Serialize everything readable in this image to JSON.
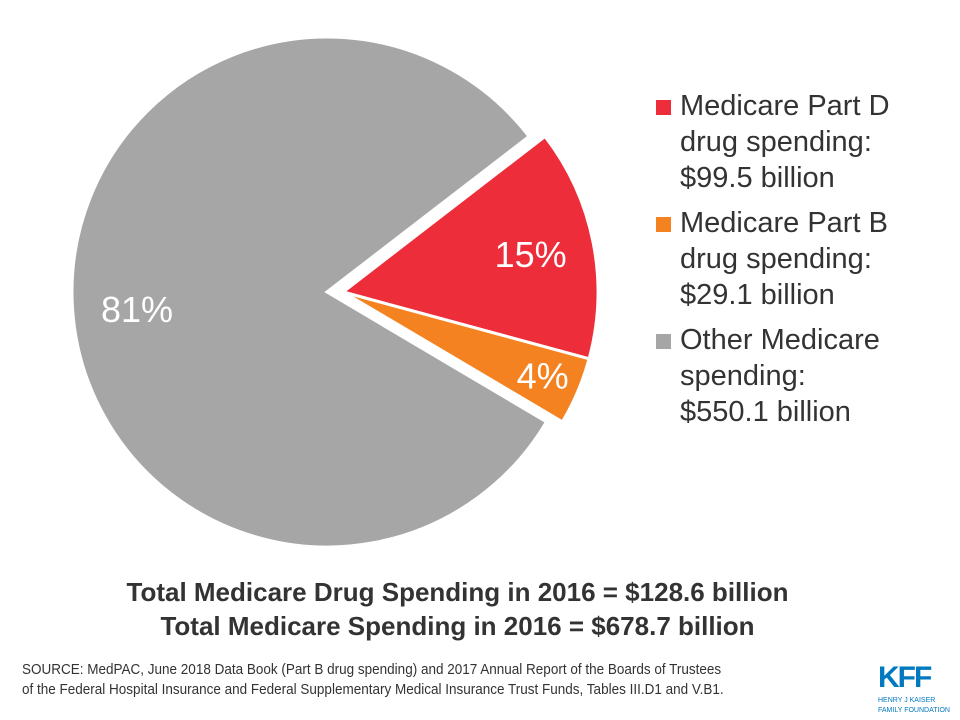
{
  "chart_data": {
    "type": "pie",
    "slices": [
      {
        "label": "Medicare Part D drug spending: $99.5 billion",
        "value": 99.5,
        "pct_label": "15%",
        "color": "#EE2D3A",
        "exploded": true
      },
      {
        "label": "Medicare Part B drug spending: $29.1 billion",
        "value": 29.1,
        "pct_label": "4%",
        "color": "#F58220",
        "exploded": true
      },
      {
        "label": "Other Medicare spending: $550.1 billion",
        "value": 550.1,
        "pct_label": "81%",
        "color": "#A6A6A6",
        "exploded": false
      }
    ],
    "legend_placement": "right"
  },
  "legend": [
    {
      "lines": [
        "Medicare Part D",
        "drug spending:",
        "$99.5 billion"
      ]
    },
    {
      "lines": [
        "Medicare Part B",
        "drug spending:",
        "$29.1 billion"
      ]
    },
    {
      "lines": [
        "Other Medicare",
        "spending:",
        "$550.1 billion"
      ]
    }
  ],
  "totals": {
    "drug": "Total Medicare Drug Spending in 2016 = $128.6 billion",
    "all": "Total Medicare Spending in 2016 = $678.7 billion"
  },
  "source": {
    "line1": "SOURCE: MedPAC, June 2018 Data Book (Part B drug spending) and 2017 Annual Report of the Boards of Trustees",
    "line2": "of the Federal Hospital Insurance  and Federal Supplementary  Medical Insurance  Trust  Funds,  Tables III.D1  and V.B1."
  },
  "logo": {
    "mark": "KFF",
    "sub1": "HENRY J KAISER",
    "sub2": "FAMILY FOUNDATION"
  }
}
